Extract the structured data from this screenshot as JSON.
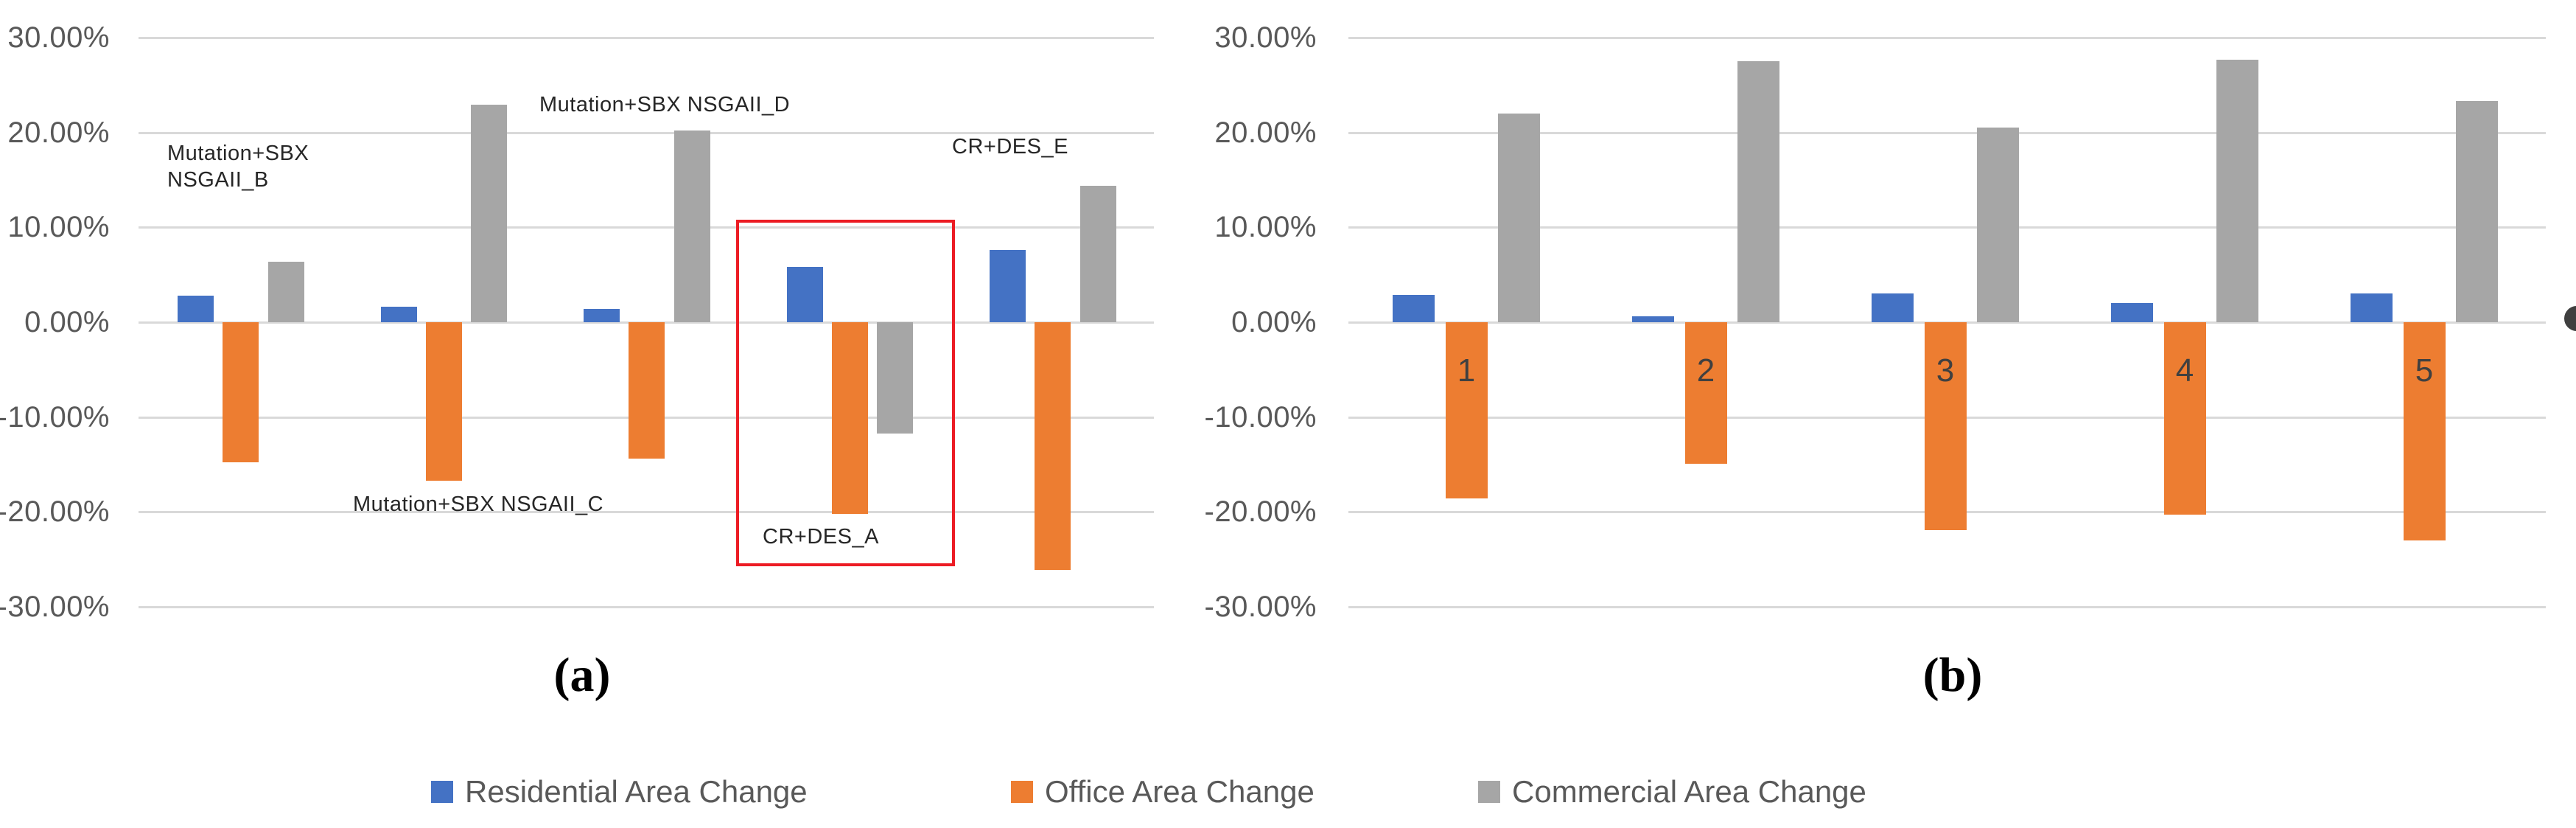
{
  "figure": {
    "description": "Two bar charts comparing area change percentages",
    "colors": {
      "residential": "#4472C4",
      "office": "#ED7D31",
      "commercial": "#A6A6A6",
      "gridline": "#D9D9D9",
      "axis_text": "#595959",
      "annotation_text": "#262626",
      "category_text": "#404040",
      "highlight_red": "#EC1C24"
    }
  },
  "chart_data": [
    {
      "id": "a",
      "type": "bar",
      "title": "(a)",
      "categories": [
        "Mutation+SBX NSGAII_B",
        "Mutation+SBX NSGAII_C",
        "Mutation+SBX NSGAII_D",
        "CR+DES_A",
        "CR+DES_E"
      ],
      "series": [
        {
          "name": "Residential Area Change",
          "values": [
            2.8,
            1.6,
            1.4,
            5.8,
            7.6
          ]
        },
        {
          "name": "Office Area Change",
          "values": [
            -14.8,
            -16.7,
            -14.4,
            -20.2,
            -26.1
          ]
        },
        {
          "name": "Commercial Area Change",
          "values": [
            6.4,
            22.9,
            20.2,
            -11.7,
            14.4
          ]
        }
      ],
      "y_axis": {
        "ticks": [
          "30.00%",
          "20.00%",
          "10.00%",
          "0.00%",
          "-10.00%",
          "-20.00%",
          "-30.00%"
        ],
        "max": 30,
        "min": -30,
        "step": 10,
        "format": "percent"
      },
      "grid": true,
      "legend_position": "bottom-shared",
      "highlighted_category": "CR+DES_A",
      "category_labels_visible": false
    },
    {
      "id": "b",
      "type": "bar",
      "title": "(b)",
      "categories": [
        "1",
        "2",
        "3",
        "4",
        "5"
      ],
      "series": [
        {
          "name": "Residential Area Change",
          "values": [
            2.9,
            0.6,
            3.0,
            2.0,
            3.0
          ]
        },
        {
          "name": "Office Area Change",
          "values": [
            -18.6,
            -14.9,
            -21.9,
            -20.3,
            -23.0
          ]
        },
        {
          "name": "Commercial Area Change",
          "values": [
            22.0,
            27.5,
            20.5,
            27.7,
            23.3
          ]
        }
      ],
      "y_axis": {
        "ticks": [
          "30.00%",
          "20.00%",
          "10.00%",
          "0.00%",
          "-10.00%",
          "-20.00%",
          "-30.00%"
        ],
        "max": 30,
        "min": -30,
        "step": 10,
        "format": "percent"
      },
      "grid": true,
      "legend_position": "bottom-shared",
      "category_labels_visible": true
    }
  ],
  "legend": {
    "items": [
      {
        "label": "Residential Area Change",
        "color": "#4472C4"
      },
      {
        "label": "Office Area Change",
        "color": "#ED7D31"
      },
      {
        "label": "Commercial Area Change",
        "color": "#A6A6A6"
      }
    ]
  }
}
